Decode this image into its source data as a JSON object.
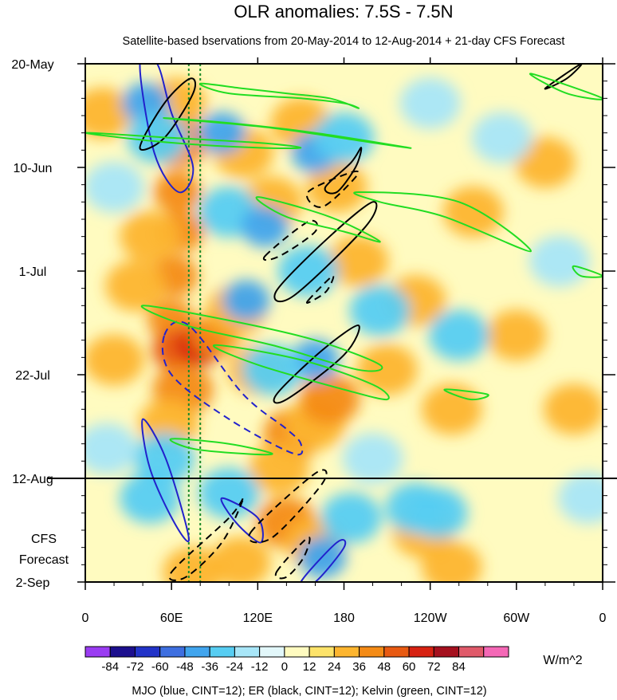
{
  "chart_data": {
    "type": "heatmap",
    "title": "OLR anomalies: 7.5S - 7.5N",
    "subtitle": "Satellite-based bservations from 20-May-2014 to 12-Aug-2014 + 21-day CFS Forecast",
    "x_range_deg": [
      0,
      360
    ],
    "x_ticks": [
      {
        "deg": 0,
        "label": "0"
      },
      {
        "deg": 60,
        "label": "60E"
      },
      {
        "deg": 120,
        "label": "120E"
      },
      {
        "deg": 180,
        "label": "180"
      },
      {
        "deg": 240,
        "label": "120W"
      },
      {
        "deg": 300,
        "label": "60W"
      },
      {
        "deg": 360,
        "label": "0"
      }
    ],
    "y_range_days": [
      0,
      105
    ],
    "y_ticks": [
      {
        "day": 0,
        "label": "20-May"
      },
      {
        "day": 21,
        "label": "10-Jun"
      },
      {
        "day": 42,
        "label": "1-Jul"
      },
      {
        "day": 63,
        "label": "22-Jul"
      },
      {
        "day": 84,
        "label": "12-Aug"
      },
      {
        "day": 105,
        "label": "2-Sep"
      }
    ],
    "forecast_start_day": 84,
    "forecast_label": [
      "CFS",
      "Forecast"
    ],
    "reference_lines_deg": [
      72,
      80
    ],
    "colorbar": {
      "levels": [
        -84,
        -72,
        -60,
        -48,
        -36,
        -24,
        -12,
        0,
        12,
        24,
        36,
        48,
        60,
        72,
        84
      ],
      "labels": [
        "-84",
        "-72",
        "-60",
        "-48",
        "-36",
        "-24",
        "-12",
        "0",
        "12",
        "24",
        "36",
        "48",
        "60",
        "72",
        "84"
      ],
      "colors": [
        "#9a3cf2",
        "#1c0f8e",
        "#2233c8",
        "#3e6fe0",
        "#41a5ee",
        "#57cdf2",
        "#a8e6f8",
        "#e2f7fa",
        "#fffbc0",
        "#fde36a",
        "#fdb52f",
        "#f48b16",
        "#e85a12",
        "#d72212",
        "#a5101e",
        "#e05a6a",
        "#f468b6"
      ],
      "units": "W/m^2"
    },
    "background_value": 0,
    "anomaly_blobs": [
      {
        "deg": 63,
        "day": 8,
        "v": 30
      },
      {
        "deg": 64,
        "day": 16,
        "v": 36
      },
      {
        "deg": 64,
        "day": 26,
        "v": 42
      },
      {
        "deg": 66,
        "day": 34,
        "v": 40
      },
      {
        "deg": 62,
        "day": 43,
        "v": 44
      },
      {
        "deg": 60,
        "day": 52,
        "v": 40
      },
      {
        "deg": 63,
        "day": 58,
        "v": 48
      },
      {
        "deg": 80,
        "day": 57,
        "v": 60
      },
      {
        "deg": 68,
        "day": 66,
        "v": 36
      },
      {
        "deg": 58,
        "day": 73,
        "v": 30
      },
      {
        "deg": 90,
        "day": 55,
        "v": 40
      },
      {
        "deg": 105,
        "day": 50,
        "v": 30
      },
      {
        "deg": 120,
        "day": 62,
        "v": 24
      },
      {
        "deg": 145,
        "day": 75,
        "v": 36
      },
      {
        "deg": 160,
        "day": 73,
        "v": 30
      },
      {
        "deg": 170,
        "day": 68,
        "v": 36
      },
      {
        "deg": 135,
        "day": 82,
        "v": 30
      },
      {
        "deg": 140,
        "day": 93,
        "v": 36
      },
      {
        "deg": 160,
        "day": 97,
        "v": 30
      },
      {
        "deg": 108,
        "day": 101,
        "v": 30
      },
      {
        "deg": 75,
        "day": 103,
        "v": 30
      },
      {
        "deg": 110,
        "day": 18,
        "v": 24
      },
      {
        "deg": 130,
        "day": 28,
        "v": 24
      },
      {
        "deg": 150,
        "day": 12,
        "v": 24
      },
      {
        "deg": 175,
        "day": 25,
        "v": 24
      },
      {
        "deg": 190,
        "day": 40,
        "v": 24
      },
      {
        "deg": 210,
        "day": 62,
        "v": 30
      },
      {
        "deg": 230,
        "day": 48,
        "v": 24
      },
      {
        "deg": 255,
        "day": 70,
        "v": 24
      },
      {
        "deg": 270,
        "day": 30,
        "v": 24
      },
      {
        "deg": 300,
        "day": 55,
        "v": 24
      },
      {
        "deg": 320,
        "day": 20,
        "v": 24
      },
      {
        "deg": 340,
        "day": 70,
        "v": 24
      },
      {
        "deg": 235,
        "day": 95,
        "v": 24
      },
      {
        "deg": 255,
        "day": 102,
        "v": 30
      },
      {
        "deg": 12,
        "day": 10,
        "v": 24
      },
      {
        "deg": 20,
        "day": 60,
        "v": 24
      },
      {
        "deg": 35,
        "day": 45,
        "v": 24
      },
      {
        "deg": 45,
        "day": 35,
        "v": 24
      },
      {
        "deg": 42,
        "day": 8,
        "v": -42
      },
      {
        "deg": 50,
        "day": 15,
        "v": -36
      },
      {
        "deg": 95,
        "day": 14,
        "v": -48
      },
      {
        "deg": 100,
        "day": 30,
        "v": -36
      },
      {
        "deg": 125,
        "day": 33,
        "v": -42
      },
      {
        "deg": 160,
        "day": 18,
        "v": -42
      },
      {
        "deg": 180,
        "day": 15,
        "v": -36
      },
      {
        "deg": 112,
        "day": 48,
        "v": -42
      },
      {
        "deg": 155,
        "day": 42,
        "v": -36
      },
      {
        "deg": 160,
        "day": 60,
        "v": -48
      },
      {
        "deg": 130,
        "day": 62,
        "v": -30
      },
      {
        "deg": 55,
        "day": 80,
        "v": -36
      },
      {
        "deg": 45,
        "day": 88,
        "v": -30
      },
      {
        "deg": 100,
        "day": 87,
        "v": -36
      },
      {
        "deg": 165,
        "day": 100,
        "v": -42
      },
      {
        "deg": 185,
        "day": 92,
        "v": -30
      },
      {
        "deg": 230,
        "day": 90,
        "v": -36
      },
      {
        "deg": 245,
        "day": 91,
        "v": -30
      },
      {
        "deg": 205,
        "day": 50,
        "v": -30
      },
      {
        "deg": 260,
        "day": 55,
        "v": -30
      },
      {
        "deg": 240,
        "day": 8,
        "v": -24
      },
      {
        "deg": 290,
        "day": 15,
        "v": -24
      },
      {
        "deg": 330,
        "day": 40,
        "v": -24
      },
      {
        "deg": 350,
        "day": 88,
        "v": -24
      },
      {
        "deg": 20,
        "day": 25,
        "v": -24
      },
      {
        "deg": 15,
        "day": 78,
        "v": -24
      },
      {
        "deg": 200,
        "day": 80,
        "v": -24
      }
    ],
    "contours": [
      {
        "wave": "MJO",
        "color": "#2222cc",
        "style": "solid",
        "points": [
          [
            38,
            0
          ],
          [
            48,
            18
          ],
          [
            65,
            26
          ],
          [
            75,
            21
          ],
          [
            60,
            10
          ],
          [
            50,
            0
          ]
        ]
      },
      {
        "wave": "MJO",
        "color": "#2222cc",
        "style": "dashed",
        "points": [
          [
            55,
            55
          ],
          [
            72,
            53
          ],
          [
            110,
            67
          ],
          [
            140,
            74
          ],
          [
            150,
            77
          ],
          [
            145,
            79
          ],
          [
            100,
            72
          ],
          [
            60,
            63
          ]
        ]
      },
      {
        "wave": "MJO",
        "color": "#2222cc",
        "style": "solid",
        "points": [
          [
            40,
            72
          ],
          [
            56,
            80
          ],
          [
            72,
            96
          ],
          [
            62,
            93
          ],
          [
            45,
            82
          ]
        ]
      },
      {
        "wave": "MJO",
        "color": "#2222cc",
        "style": "solid",
        "points": [
          [
            95,
            88
          ],
          [
            120,
            92
          ],
          [
            122,
            97
          ],
          [
            105,
            93
          ]
        ]
      },
      {
        "wave": "MJO",
        "color": "#2222cc",
        "style": "solid",
        "points": [
          [
            150,
            105
          ],
          [
            175,
            97
          ],
          [
            180,
            98
          ],
          [
            160,
            105
          ]
        ]
      },
      {
        "wave": "ER",
        "color": "#000000",
        "style": "solid",
        "points": [
          [
            38,
            17
          ],
          [
            55,
            8
          ],
          [
            73,
            3
          ],
          [
            75,
            6
          ],
          [
            55,
            15
          ]
        ]
      },
      {
        "wave": "ER",
        "color": "#000000",
        "style": "solid",
        "points": [
          [
            167,
            25
          ],
          [
            185,
            20
          ],
          [
            192,
            17
          ],
          [
            188,
            21
          ],
          [
            175,
            26
          ]
        ]
      },
      {
        "wave": "ER",
        "color": "#000000",
        "style": "solid",
        "points": [
          [
            133,
            46
          ],
          [
            170,
            35
          ],
          [
            200,
            28
          ],
          [
            195,
            33
          ],
          [
            145,
            47
          ]
        ]
      },
      {
        "wave": "ER",
        "color": "#000000",
        "style": "solid",
        "points": [
          [
            133,
            67
          ],
          [
            165,
            58
          ],
          [
            190,
            53
          ],
          [
            180,
            59
          ],
          [
            140,
            68
          ]
        ]
      },
      {
        "wave": "ER",
        "color": "#000000",
        "style": "dashed",
        "points": [
          [
            125,
            39
          ],
          [
            155,
            32
          ],
          [
            160,
            34
          ],
          [
            135,
            39
          ]
        ]
      },
      {
        "wave": "ER",
        "color": "#000000",
        "style": "dashed",
        "points": [
          [
            155,
            26
          ],
          [
            185,
            22
          ],
          [
            188,
            23
          ],
          [
            165,
            29
          ]
        ]
      },
      {
        "wave": "ER",
        "color": "#000000",
        "style": "dashed",
        "points": [
          [
            155,
            48
          ],
          [
            172,
            43
          ],
          [
            168,
            46
          ],
          [
            158,
            48
          ]
        ]
      },
      {
        "wave": "ER",
        "color": "#000000",
        "style": "dashed",
        "points": [
          [
            60,
            103
          ],
          [
            100,
            92
          ],
          [
            110,
            88
          ],
          [
            95,
            97
          ],
          [
            70,
            104
          ]
        ]
      },
      {
        "wave": "ER",
        "color": "#000000",
        "style": "dashed",
        "points": [
          [
            115,
            95
          ],
          [
            160,
            83
          ],
          [
            165,
            85
          ],
          [
            130,
            96
          ]
        ]
      },
      {
        "wave": "ER",
        "color": "#000000",
        "style": "dashed",
        "points": [
          [
            133,
            103
          ],
          [
            155,
            96
          ],
          [
            152,
            100
          ],
          [
            140,
            104
          ]
        ]
      },
      {
        "wave": "ER",
        "color": "#000000",
        "style": "solid",
        "points": [
          [
            320,
            5
          ],
          [
            345,
            0
          ],
          [
            335,
            3
          ]
        ]
      },
      {
        "wave": "Kelvin",
        "color": "#22dd22",
        "style": "solid",
        "points": [
          [
            80,
            4
          ],
          [
            110,
            5
          ],
          [
            140,
            6
          ],
          [
            170,
            7
          ],
          [
            190,
            9
          ],
          [
            180,
            8
          ],
          [
            150,
            7
          ],
          [
            100,
            6
          ]
        ]
      },
      {
        "wave": "Kelvin",
        "color": "#22dd22",
        "style": "solid",
        "points": [
          [
            55,
            11
          ],
          [
            100,
            12
          ],
          [
            160,
            14
          ],
          [
            225,
            17
          ],
          [
            200,
            16
          ],
          [
            130,
            13
          ]
        ]
      },
      {
        "wave": "Kelvin",
        "color": "#22dd22",
        "style": "solid",
        "points": [
          [
            0,
            14
          ],
          [
            60,
            15
          ],
          [
            120,
            16
          ],
          [
            150,
            17
          ],
          [
            120,
            17
          ],
          [
            60,
            16
          ]
        ]
      },
      {
        "wave": "Kelvin",
        "color": "#22dd22",
        "style": "solid",
        "points": [
          [
            190,
            26
          ],
          [
            260,
            28
          ],
          [
            310,
            38
          ],
          [
            250,
            31
          ],
          [
            205,
            28
          ]
        ]
      },
      {
        "wave": "Kelvin",
        "color": "#22dd22",
        "style": "solid",
        "points": [
          [
            120,
            27
          ],
          [
            170,
            31
          ],
          [
            205,
            36
          ],
          [
            180,
            34
          ],
          [
            140,
            31
          ]
        ]
      },
      {
        "wave": "Kelvin",
        "color": "#22dd22",
        "style": "solid",
        "points": [
          [
            40,
            49
          ],
          [
            100,
            52
          ],
          [
            160,
            56
          ],
          [
            205,
            61
          ],
          [
            190,
            62
          ],
          [
            130,
            57
          ],
          [
            70,
            53
          ]
        ]
      },
      {
        "wave": "Kelvin",
        "color": "#22dd22",
        "style": "solid",
        "points": [
          [
            90,
            57
          ],
          [
            150,
            60
          ],
          [
            200,
            65
          ],
          [
            210,
            68
          ],
          [
            180,
            66
          ],
          [
            120,
            61
          ]
        ]
      },
      {
        "wave": "Kelvin",
        "color": "#22dd22",
        "style": "solid",
        "points": [
          [
            340,
            41
          ],
          [
            360,
            43
          ],
          [
            345,
            43
          ]
        ]
      },
      {
        "wave": "Kelvin",
        "color": "#22dd22",
        "style": "solid",
        "points": [
          [
            250,
            66
          ],
          [
            280,
            67
          ],
          [
            268,
            68
          ]
        ]
      },
      {
        "wave": "Kelvin",
        "color": "#22dd22",
        "style": "solid",
        "points": [
          [
            310,
            2
          ],
          [
            360,
            7
          ],
          [
            335,
            6
          ]
        ]
      },
      {
        "wave": "Kelvin",
        "color": "#22dd22",
        "style": "solid",
        "points": [
          [
            60,
            76
          ],
          [
            100,
            77
          ],
          [
            130,
            79
          ],
          [
            110,
            79
          ],
          [
            75,
            78
          ]
        ]
      }
    ],
    "footer": "MJO (blue, CINT=12); ER (black, CINT=12); Kelvin (green, CINT=12)"
  }
}
